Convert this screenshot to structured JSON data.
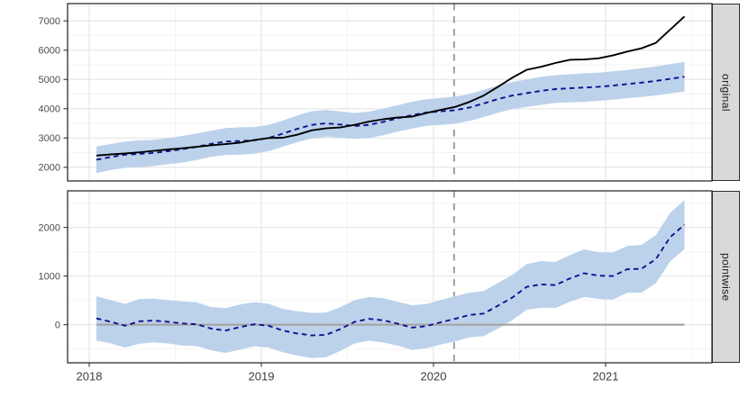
{
  "chart_data": {
    "type": "line",
    "description": "Faceted time-series plot with observed vs counterfactual prediction (original) and pointwise effect, with confidence ribbons and an intervention line",
    "facets": [
      "original",
      "pointwise"
    ],
    "x": {
      "ticks": [
        2018,
        2019,
        2020,
        2021
      ],
      "tick_labels": [
        "2018",
        "2019",
        "2020",
        "2021"
      ],
      "minor_ticks": [
        2018.5,
        2019.5,
        2020.5,
        2021.5
      ],
      "values": [
        2018.042,
        2018.125,
        2018.208,
        2018.292,
        2018.375,
        2018.458,
        2018.542,
        2018.625,
        2018.708,
        2018.792,
        2018.875,
        2018.958,
        2019.042,
        2019.125,
        2019.208,
        2019.292,
        2019.375,
        2019.458,
        2019.542,
        2019.625,
        2019.708,
        2019.792,
        2019.875,
        2019.958,
        2020.042,
        2020.125,
        2020.208,
        2020.292,
        2020.375,
        2020.458,
        2020.542,
        2020.625,
        2020.708,
        2020.792,
        2020.875,
        2020.958,
        2021.042,
        2021.125,
        2021.208,
        2021.292,
        2021.375,
        2021.458
      ]
    },
    "intervention_x": 2020.12,
    "ci_halfwidth": [
      455,
      445,
      450,
      460,
      450,
      445,
      455,
      450,
      445,
      460,
      465,
      455,
      450,
      445,
      455,
      465,
      460,
      450,
      445,
      450,
      455,
      450,
      460,
      455,
      460,
      465,
      460,
      465,
      470,
      465,
      470,
      480,
      475,
      480,
      490,
      480,
      485,
      480,
      490,
      495,
      500,
      505
    ],
    "panels": [
      {
        "label": "original",
        "y_ticks": [
          2000,
          3000,
          4000,
          5000,
          6000,
          7000
        ],
        "y_tick_labels": [
          "2000",
          "3000",
          "4000",
          "5000",
          "6000",
          "7000"
        ],
        "y_minor_ticks": [
          2500,
          3500,
          4500,
          5500,
          6500,
          7500
        ],
        "zero_line": false,
        "ribbon_center": "predicted",
        "series": [
          {
            "name": "observed",
            "style": "solid",
            "color": "#000000",
            "values": [
              2400,
              2440,
              2470,
              2510,
              2560,
              2610,
              2650,
              2700,
              2750,
              2790,
              2840,
              2930,
              3000,
              3010,
              3110,
              3260,
              3330,
              3360,
              3450,
              3560,
              3640,
              3700,
              3730,
              3850,
              3960,
              4060,
              4230,
              4450,
              4750,
              5060,
              5330,
              5430,
              5560,
              5670,
              5680,
              5720,
              5820,
              5950,
              6060,
              6250,
              6700,
              7150
            ]
          },
          {
            "name": "predicted",
            "style": "dashed",
            "color": "#10108e",
            "values": [
              2260,
              2350,
              2430,
              2460,
              2490,
              2550,
              2620,
              2700,
              2800,
              2880,
              2900,
              2920,
              3000,
              3150,
              3310,
              3450,
              3500,
              3460,
              3410,
              3450,
              3550,
              3670,
              3780,
              3870,
              3910,
              3950,
              4040,
              4180,
              4330,
              4450,
              4530,
              4610,
              4670,
              4700,
              4720,
              4750,
              4790,
              4840,
              4890,
              4950,
              5020,
              5090
            ]
          }
        ]
      },
      {
        "label": "pointwise",
        "y_ticks": [
          0,
          1000,
          2000
        ],
        "y_tick_labels": [
          "0",
          "1000",
          "2000"
        ],
        "y_minor_ticks": [
          -500,
          500,
          1500,
          2500
        ],
        "zero_line": true,
        "ribbon_center": "pointwise_effect",
        "series": [
          {
            "name": "pointwise_effect",
            "style": "dashed",
            "color": "#10108e",
            "values": [
              130,
              60,
              -20,
              70,
              85,
              60,
              25,
              10,
              -80,
              -120,
              -50,
              10,
              -20,
              -120,
              -180,
              -220,
              -210,
              -90,
              60,
              120,
              90,
              20,
              -60,
              -30,
              50,
              120,
              200,
              230,
              390,
              560,
              780,
              830,
              815,
              950,
              1060,
              1010,
              1000,
              1140,
              1150,
              1350,
              1800,
              2060
            ]
          }
        ]
      }
    ],
    "colors": {
      "ribbon": "#bcd2eb",
      "observed": "#000000",
      "predicted": "#10108e",
      "grid_major": "#e4e4e4",
      "grid_minor": "#f3f3f3",
      "panel_border": "#2e2e2e",
      "strip_bg": "#d9d9d9",
      "strip_text": "#1a1a1a",
      "axis_text": "#4d4d4d",
      "x_axis_text": "#3d3d3d",
      "tick_mark": "#333333",
      "zero_line": "#a3a3a3",
      "intervention_line": "#a6a6a6",
      "background": "#ffffff"
    },
    "legend": {
      "visible": false
    }
  }
}
